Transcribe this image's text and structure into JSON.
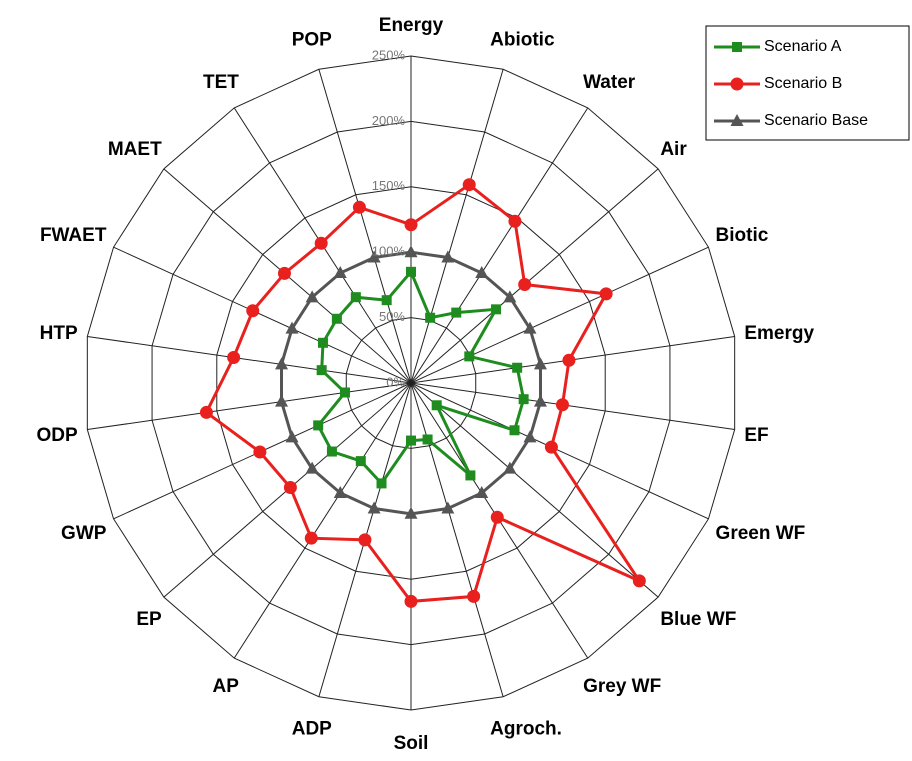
{
  "chart_data": {
    "type": "radar",
    "categories": [
      "Energy",
      "Abiotic",
      "Water",
      "Air",
      "Biotic",
      "Emergy",
      "EF",
      "Green WF",
      "Blue WF",
      "Grey WF",
      "Agroch.",
      "Soil",
      "ADP",
      "AP",
      "EP",
      "GWP",
      "ODP",
      "HTP",
      "FWAET",
      "MAET",
      "TET",
      "POP"
    ],
    "series": [
      {
        "name": "Scenario A",
        "color": "#1e8c1e",
        "marker": "square",
        "values": [
          85,
          52,
          64,
          86,
          49,
          82,
          87,
          87,
          26,
          84,
          45,
          44,
          80,
          71,
          80,
          78,
          51,
          69,
          74,
          75,
          78,
          66
        ]
      },
      {
        "name": "Scenario B",
        "color": "#e8201e",
        "marker": "circle",
        "values": [
          121,
          158,
          147,
          115,
          164,
          122,
          117,
          118,
          231,
          122,
          170,
          167,
          125,
          141,
          122,
          127,
          158,
          137,
          133,
          128,
          127,
          140
        ]
      },
      {
        "name": "Scenario Base",
        "color": "#555555",
        "marker": "triangle",
        "values": [
          100,
          100,
          100,
          100,
          100,
          100,
          100,
          100,
          100,
          100,
          100,
          100,
          100,
          100,
          100,
          100,
          100,
          100,
          100,
          100,
          100,
          100
        ]
      }
    ],
    "ylim": [
      0,
      250
    ],
    "yticks": [
      {
        "value": 0,
        "label": "0%"
      },
      {
        "value": 50,
        "label": "50%"
      },
      {
        "value": 100,
        "label": "100%"
      },
      {
        "value": 150,
        "label": "150%"
      },
      {
        "value": 200,
        "label": "200%"
      },
      {
        "value": 250,
        "label": "250%"
      }
    ],
    "legend": "top-right"
  }
}
